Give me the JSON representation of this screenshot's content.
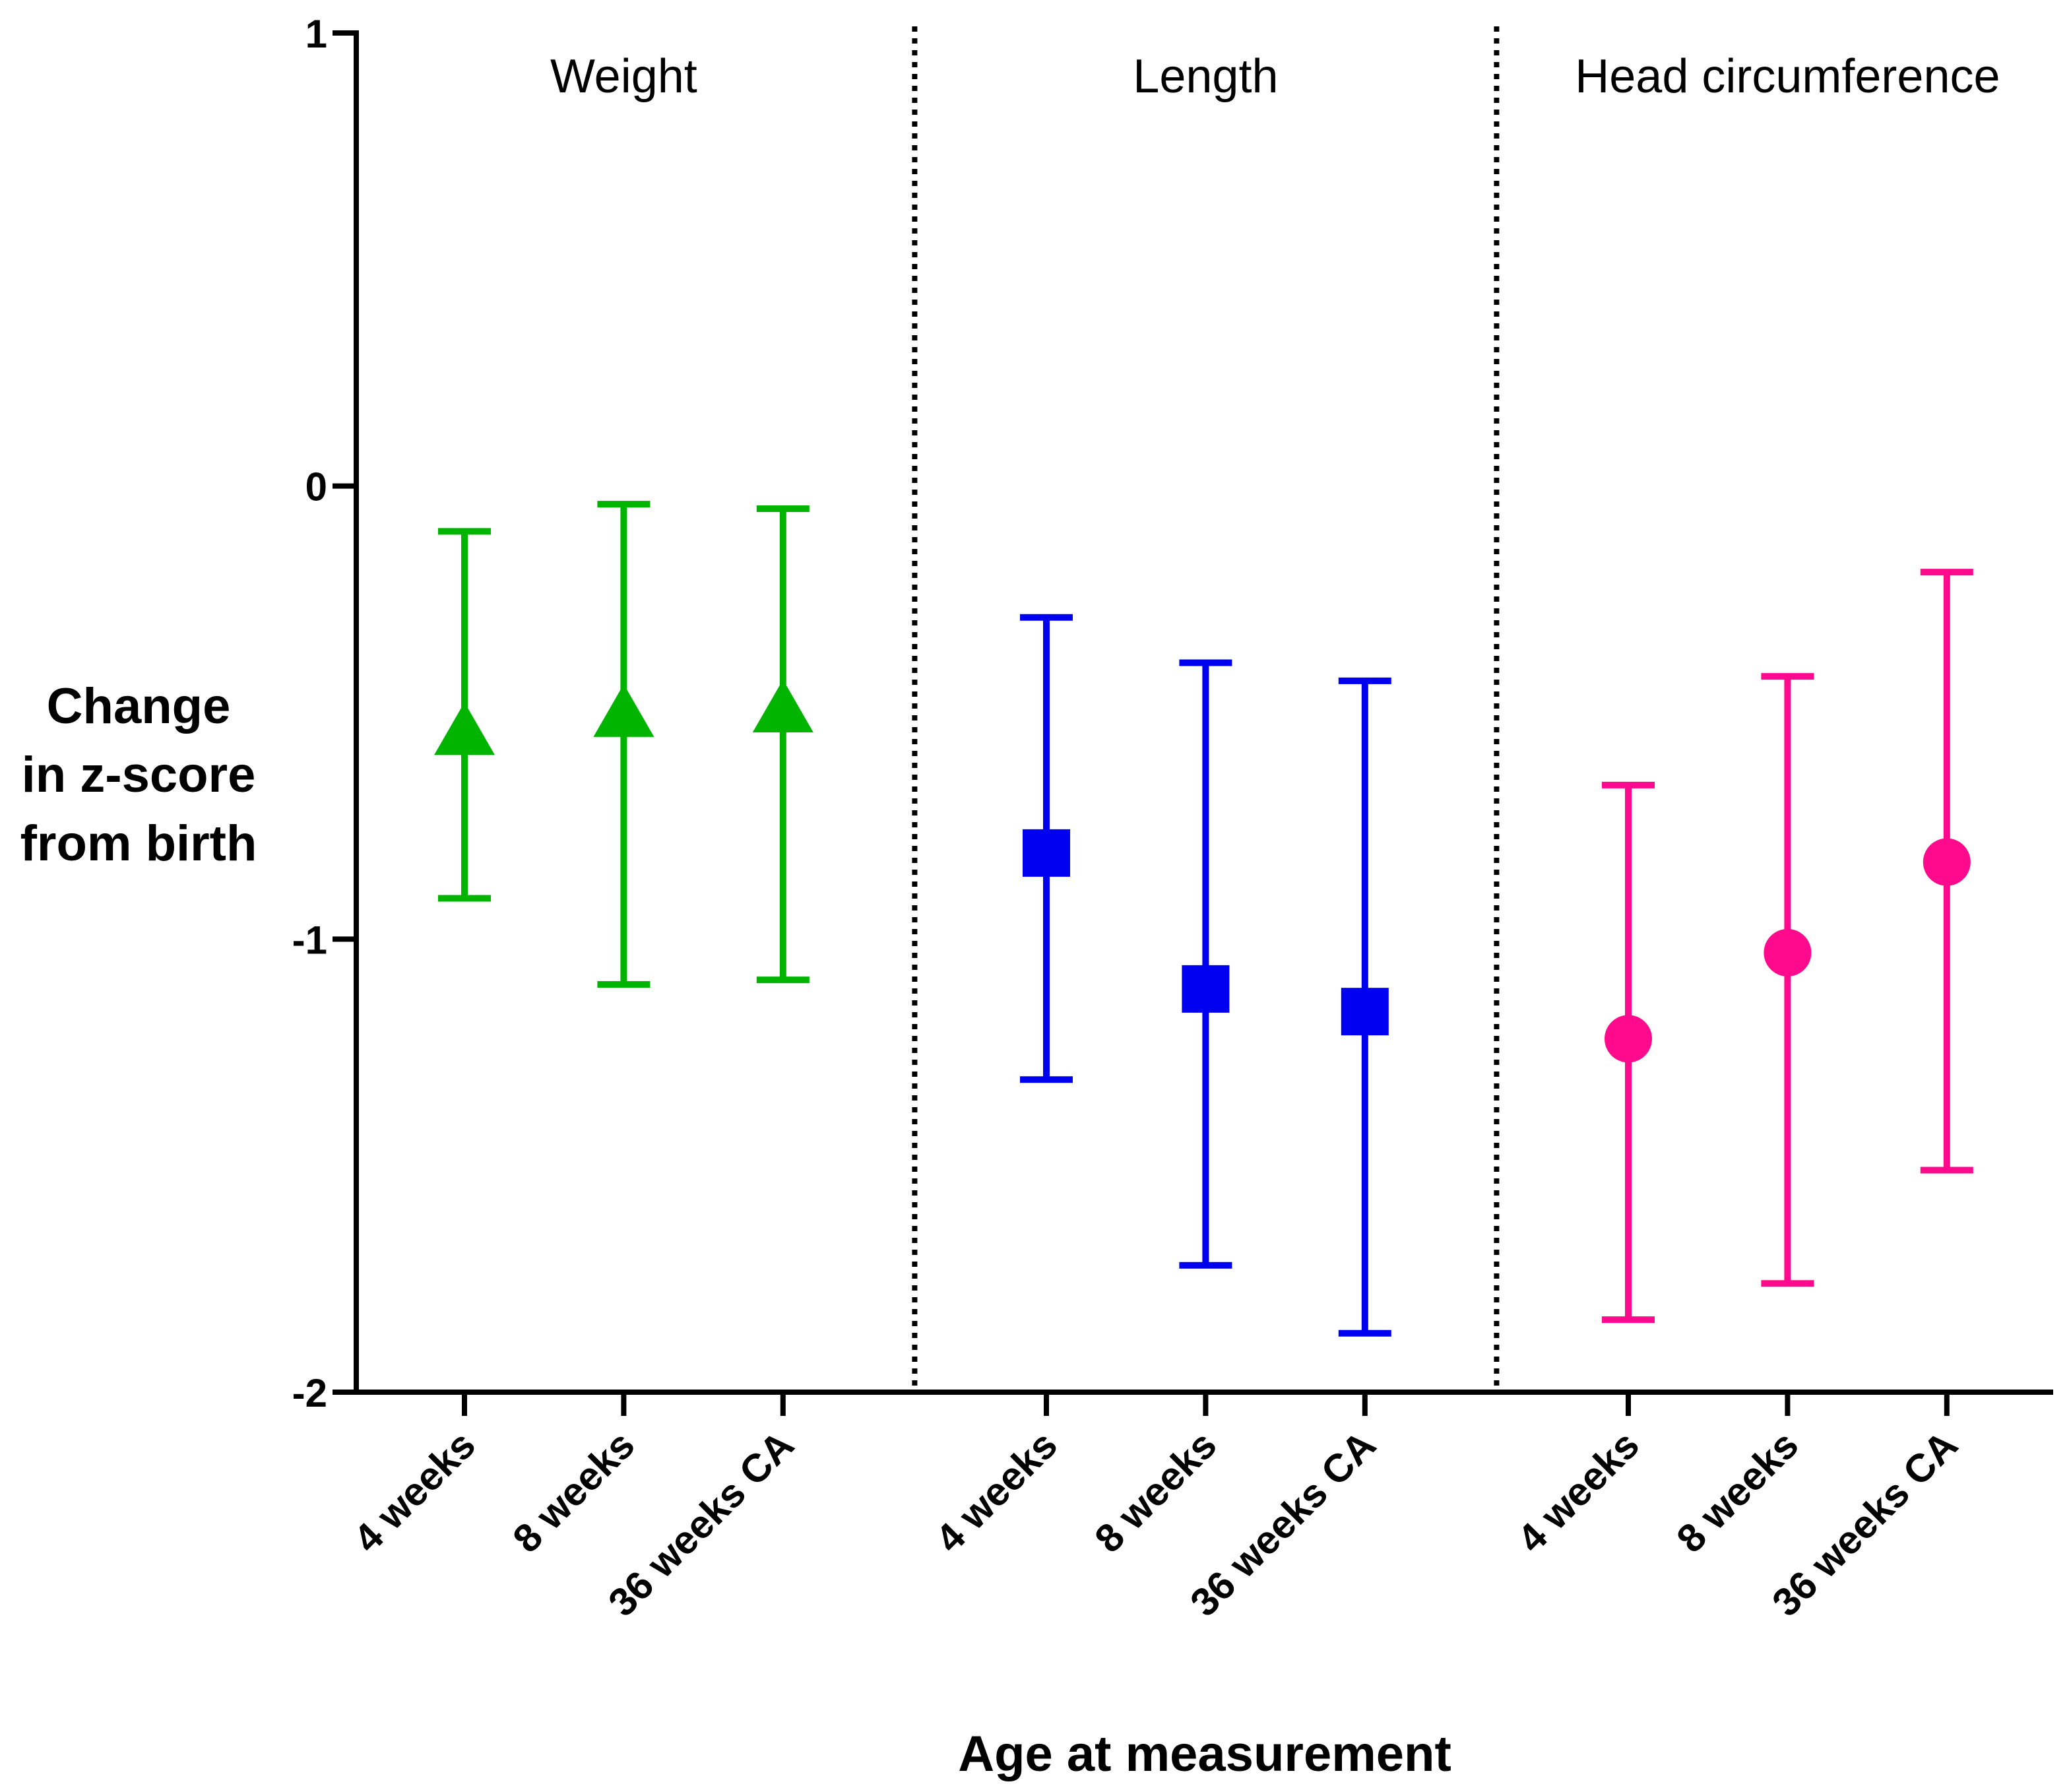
{
  "chart_data": {
    "type": "errorbar",
    "xlabel": "Age at measurement",
    "ylabel": [
      "Change",
      "in z-score",
      "from birth"
    ],
    "ylim": [
      -2,
      1
    ],
    "yticks": [
      1,
      0,
      -1,
      -2
    ],
    "series": [
      {
        "name": "Weight",
        "color": "#00b400",
        "marker": "triangle",
        "categories": [
          "4 weeks",
          "8 weeks",
          "36 weeks CA"
        ],
        "values": [
          -0.55,
          -0.51,
          -0.5
        ],
        "lower": [
          -0.91,
          -1.1,
          -1.09
        ],
        "upper": [
          -0.1,
          -0.04,
          -0.05
        ]
      },
      {
        "name": "Length",
        "color": "#0000f0",
        "marker": "square",
        "categories": [
          "4 weeks",
          "8 weeks",
          "36 weeks CA"
        ],
        "values": [
          -0.81,
          -1.11,
          -1.16
        ],
        "lower": [
          -1.31,
          -1.72,
          -1.87
        ],
        "upper": [
          -0.29,
          -0.39,
          -0.43
        ]
      },
      {
        "name": "Head circumference",
        "color": "#ff0a8c",
        "marker": "circle",
        "categories": [
          "4 weeks",
          "8 weeks",
          "36 weeks CA"
        ],
        "values": [
          -1.22,
          -1.03,
          -0.83
        ],
        "lower": [
          -1.84,
          -1.76,
          -1.51
        ],
        "upper": [
          -0.66,
          -0.42,
          -0.19
        ]
      }
    ]
  }
}
